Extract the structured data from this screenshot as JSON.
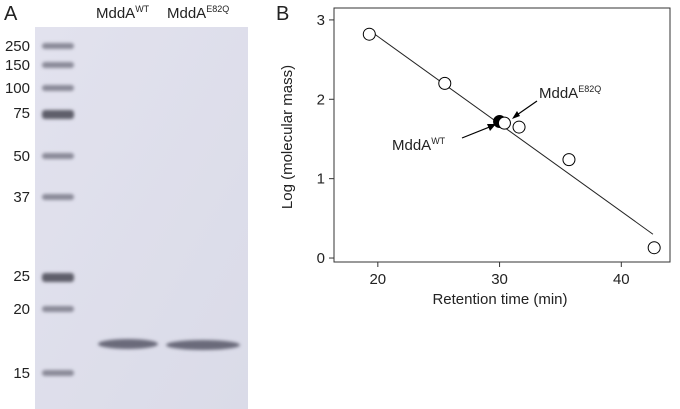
{
  "panel_a": {
    "label": "A",
    "lanes": [
      {
        "text": "MddA",
        "sup": "WT"
      },
      {
        "text": "MddA",
        "sup": "E82Q"
      }
    ],
    "marker_labels": [
      "250",
      "150",
      "100",
      "75",
      "50",
      "37",
      "25",
      "20",
      "15"
    ]
  },
  "chart_data": {
    "type": "scatter",
    "panel_label": "B",
    "x_label": "Retention time (min)",
    "y_label": "Log (molecular mass)",
    "xlim": [
      16.4,
      44
    ],
    "ylim": [
      -0.05,
      3.15
    ],
    "xticks": [
      20,
      30,
      40
    ],
    "yticks": [
      0,
      1,
      2,
      3
    ],
    "series": [
      {
        "color": "#000000",
        "x": [
          30.0
        ],
        "values": [
          1.72
        ]
      },
      {
        "color": "#ffffff",
        "x": [
          19.3,
          25.5,
          30.4,
          31.6,
          35.7,
          42.7
        ],
        "values": [
          2.82,
          2.2,
          1.7,
          1.65,
          1.24,
          0.13
        ]
      }
    ],
    "fit_line": {
      "x": [
        19.2,
        42.6
      ],
      "values": [
        2.88,
        0.3
      ]
    },
    "annotations": [
      {
        "text": "MddA",
        "sup": "E82Q"
      },
      {
        "text": "MddA",
        "sup": "WT"
      }
    ]
  }
}
